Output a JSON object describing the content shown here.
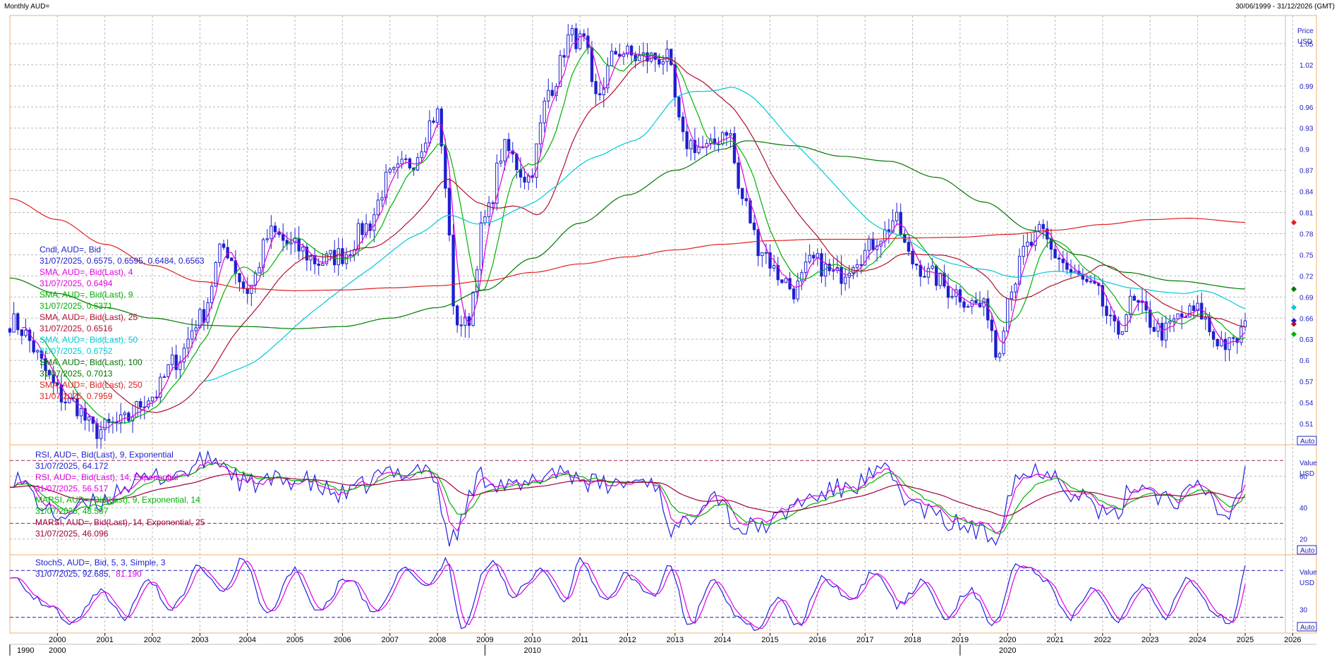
{
  "window": {
    "title": "Monthly AUD=",
    "date_range": "30/06/1999 - 31/12/2026 (GMT)"
  },
  "colors": {
    "candle": "#1f1fd0",
    "sma4": "#e000e0",
    "sma9": "#00b000",
    "sma25": "#b01030",
    "sma50": "#00c8d8",
    "sma100": "#007800",
    "sma250": "#e02020",
    "rsi9": "#2020e0",
    "rsi14": "#e000e0",
    "marsi9": "#00b000",
    "marsi14": "#a00040",
    "stoch_k": "#2020e0",
    "stoch_d": "#e000e0",
    "grid": "#b8b8b8",
    "panel_border": "#f0b070"
  },
  "price_panel": {
    "axis_title": "Price",
    "axis_unit": "USD",
    "auto_label": "Auto",
    "legend": [
      {
        "title": "Cndl, AUD=, Bid",
        "value": "31/07/2025, 0.6575, 0.6595, 0.6484, 0.6563",
        "color": "#2020d0"
      },
      {
        "title": "SMA, AUD=, Bid(Last), 4",
        "value": "31/07/2025, 0.6494",
        "color": "#e000e0"
      },
      {
        "title": "SMA, AUD=, Bid(Last), 9",
        "value": "31/07/2025, 0.6371",
        "color": "#00b000"
      },
      {
        "title": "SMA, AUD=, Bid(Last), 25",
        "value": "31/07/2025, 0.6516",
        "color": "#b01030"
      },
      {
        "title": "SMA, AUD=, Bid(Last), 50",
        "value": "31/07/2025, 0.6752",
        "color": "#00c8d8"
      },
      {
        "title": "SMA, AUD=, Bid(Last), 100",
        "value": "31/07/2025, 0.7013",
        "color": "#007800"
      },
      {
        "title": "SMA, AUD=, Bid(Last), 250",
        "value": "31/07/2025, 0.7959",
        "color": "#e02020"
      }
    ]
  },
  "rsi_panel": {
    "axis_title": "Value",
    "axis_unit": "USD",
    "auto_label": "Auto",
    "legend": [
      {
        "title": "RSI, AUD=, Bid(Last), 9, Exponential",
        "value": "31/07/2025, 64.172",
        "color": "#2020d0"
      },
      {
        "title": "RSI, AUD=, Bid(Last), 14, Exponential",
        "value": "31/07/2025, 56.517",
        "color": "#e000e0"
      },
      {
        "title": "MARSI, AUD=, Bid(Last), 9, Exponential, 14",
        "value": "31/07/2025, 48.507",
        "color": "#00b000"
      },
      {
        "title": "MARSI, AUD=, Bid(Last), 14, Exponential, 25",
        "value": "31/07/2025, 46.096",
        "color": "#a00040"
      }
    ]
  },
  "stoch_panel": {
    "axis_title": "Value",
    "axis_unit": "USD",
    "auto_label": "Auto",
    "legend_title": "StochS, AUD=, Bid,  5, 3, Simple, 3",
    "legend_date": "31/07/2025, 92.685,",
    "legend_k": "92.685",
    "legend_d": "81.190"
  },
  "x_axis": {
    "year_labels": [
      "2000",
      "2001",
      "2002",
      "2003",
      "2004",
      "2005",
      "2006",
      "2007",
      "2008",
      "2009",
      "2010",
      "2011",
      "2012",
      "2013",
      "2014",
      "2015",
      "2016",
      "2017",
      "2018",
      "2019",
      "2020",
      "2021",
      "2022",
      "2023",
      "2024",
      "2025",
      "2026"
    ],
    "decade_labels": [
      "1990",
      "2000",
      "2010",
      "2020"
    ]
  },
  "chart_data": [
    {
      "type": "candlestick",
      "title": "Monthly AUD=",
      "ylabel": "Price USD",
      "ylim": [
        0.48,
        1.09
      ],
      "y_ticks": [
        "1.05",
        "1.02",
        "0.99",
        "0.96",
        "0.93",
        "0.9",
        "0.87",
        "0.84",
        "0.81",
        "0.78",
        "0.75",
        "0.72",
        "0.69",
        "0.66",
        "0.63",
        "0.6",
        "0.57",
        "0.54",
        "0.51"
      ],
      "close_anchors": [
        [
          1999.5,
          0.655
        ],
        [
          2000.8,
          0.54
        ],
        [
          2001.3,
          0.5
        ],
        [
          2001.8,
          0.51
        ],
        [
          2002.5,
          0.55
        ],
        [
          2003.0,
          0.6
        ],
        [
          2003.5,
          0.66
        ],
        [
          2004.0,
          0.76
        ],
        [
          2004.5,
          0.7
        ],
        [
          2005.0,
          0.78
        ],
        [
          2005.5,
          0.76
        ],
        [
          2006.0,
          0.74
        ],
        [
          2006.5,
          0.75
        ],
        [
          2007.0,
          0.79
        ],
        [
          2007.5,
          0.86
        ],
        [
          2007.9,
          0.88
        ],
        [
          2008.5,
          0.95
        ],
        [
          2008.7,
          0.83
        ],
        [
          2008.85,
          0.66
        ],
        [
          2009.1,
          0.65
        ],
        [
          2009.5,
          0.8
        ],
        [
          2009.9,
          0.9
        ],
        [
          2010.4,
          0.86
        ],
        [
          2010.9,
          0.99
        ],
        [
          2011.3,
          1.06
        ],
        [
          2011.6,
          1.05
        ],
        [
          2011.8,
          0.97
        ],
        [
          2012.3,
          1.04
        ],
        [
          2012.7,
          1.03
        ],
        [
          2013.3,
          1.03
        ],
        [
          2013.7,
          0.91
        ],
        [
          2014.2,
          0.9
        ],
        [
          2014.6,
          0.93
        ],
        [
          2014.9,
          0.83
        ],
        [
          2015.3,
          0.76
        ],
        [
          2015.7,
          0.72
        ],
        [
          2016.0,
          0.7
        ],
        [
          2016.4,
          0.74
        ],
        [
          2016.9,
          0.72
        ],
        [
          2017.4,
          0.75
        ],
        [
          2017.9,
          0.78
        ],
        [
          2018.1,
          0.8
        ],
        [
          2018.5,
          0.74
        ],
        [
          2018.9,
          0.72
        ],
        [
          2019.3,
          0.7
        ],
        [
          2019.8,
          0.68
        ],
        [
          2020.1,
          0.67
        ],
        [
          2020.25,
          0.61
        ],
        [
          2020.6,
          0.71
        ],
        [
          2020.9,
          0.76
        ],
        [
          2021.2,
          0.78
        ],
        [
          2021.5,
          0.75
        ],
        [
          2021.9,
          0.72
        ],
        [
          2022.3,
          0.7
        ],
        [
          2022.8,
          0.64
        ],
        [
          2023.1,
          0.68
        ],
        [
          2023.8,
          0.64
        ],
        [
          2024.1,
          0.66
        ],
        [
          2024.5,
          0.67
        ],
        [
          2024.9,
          0.63
        ],
        [
          2025.2,
          0.62
        ],
        [
          2025.58,
          0.6563
        ]
      ],
      "series": [
        {
          "name": "SMA, AUD=, Bid(Last), 100",
          "anchors": [
            [
              1999.5,
              0.717
            ],
            [
              2000.5,
              0.695
            ],
            [
              2001.5,
              0.675
            ],
            [
              2002.5,
              0.66
            ],
            [
              2003.5,
              0.65
            ],
            [
              2004.5,
              0.648
            ],
            [
              2005.5,
              0.645
            ],
            [
              2006.5,
              0.648
            ],
            [
              2007.5,
              0.66
            ],
            [
              2008.5,
              0.675
            ],
            [
              2009.5,
              0.7
            ],
            [
              2010.5,
              0.745
            ],
            [
              2011.5,
              0.795
            ],
            [
              2012.5,
              0.835
            ],
            [
              2013.5,
              0.87
            ],
            [
              2014.5,
              0.9
            ],
            [
              2015.0,
              0.912
            ],
            [
              2016.0,
              0.905
            ],
            [
              2017.0,
              0.89
            ],
            [
              2018.0,
              0.883
            ],
            [
              2019.0,
              0.86
            ],
            [
              2020.0,
              0.825
            ],
            [
              2021.0,
              0.785
            ],
            [
              2022.0,
              0.75
            ],
            [
              2023.0,
              0.725
            ],
            [
              2024.0,
              0.713
            ],
            [
              2025.58,
              0.7013
            ]
          ]
        },
        {
          "name": "SMA, AUD=, Bid(Last), 250",
          "anchors": [
            [
              1999.5,
              0.83
            ],
            [
              2000.5,
              0.8
            ],
            [
              2001.5,
              0.765
            ],
            [
              2002.5,
              0.735
            ],
            [
              2003.5,
              0.712
            ],
            [
              2004.5,
              0.702
            ],
            [
              2005.5,
              0.699
            ],
            [
              2006.5,
              0.7
            ],
            [
              2007.5,
              0.703
            ],
            [
              2008.5,
              0.706
            ],
            [
              2009.5,
              0.713
            ],
            [
              2010.5,
              0.725
            ],
            [
              2011.5,
              0.737
            ],
            [
              2012.5,
              0.747
            ],
            [
              2013.5,
              0.757
            ],
            [
              2014.5,
              0.765
            ],
            [
              2015.5,
              0.77
            ],
            [
              2016.5,
              0.772
            ],
            [
              2017.5,
              0.772
            ],
            [
              2018.5,
              0.774
            ],
            [
              2019.5,
              0.775
            ],
            [
              2020.5,
              0.779
            ],
            [
              2021.5,
              0.785
            ],
            [
              2022.5,
              0.793
            ],
            [
              2023.5,
              0.8
            ],
            [
              2024.3,
              0.802
            ],
            [
              2025.58,
              0.7959
            ]
          ]
        }
      ]
    },
    {
      "type": "line",
      "title": "RSI",
      "ylabel": "Value USD",
      "ylim": [
        10,
        80
      ],
      "y_ticks": [
        "60",
        "40",
        "20"
      ],
      "bands": [
        70,
        30
      ],
      "anchors": [
        [
          1999.5,
          60
        ],
        [
          2000.5,
          35
        ],
        [
          2001.3,
          42
        ],
        [
          2002.0,
          55
        ],
        [
          2003.0,
          62
        ],
        [
          2003.8,
          71
        ],
        [
          2004.5,
          55
        ],
        [
          2005.5,
          58
        ],
        [
          2006.5,
          48
        ],
        [
          2007.5,
          62
        ],
        [
          2008.3,
          66
        ],
        [
          2008.8,
          20
        ],
        [
          2009.4,
          60
        ],
        [
          2010.2,
          52
        ],
        [
          2011.0,
          64
        ],
        [
          2012.0,
          54
        ],
        [
          2013.0,
          58
        ],
        [
          2013.5,
          25
        ],
        [
          2014.3,
          50
        ],
        [
          2014.9,
          26
        ],
        [
          2015.5,
          30
        ],
        [
          2016.2,
          45
        ],
        [
          2017.0,
          52
        ],
        [
          2017.9,
          62
        ],
        [
          2018.6,
          40
        ],
        [
          2019.3,
          30
        ],
        [
          2020.2,
          22
        ],
        [
          2020.7,
          60
        ],
        [
          2021.3,
          65
        ],
        [
          2022.0,
          48
        ],
        [
          2022.7,
          33
        ],
        [
          2023.2,
          55
        ],
        [
          2024.0,
          45
        ],
        [
          2024.6,
          52
        ],
        [
          2025.1,
          34
        ],
        [
          2025.58,
          64
        ]
      ]
    },
    {
      "type": "line",
      "title": "StochS",
      "ylabel": "Value USD",
      "ylim": [
        0,
        100
      ],
      "y_ticks": [
        "30"
      ],
      "bands": [
        80,
        20
      ],
      "anchors": [
        [
          1999.5,
          75
        ],
        [
          2000.2,
          40
        ],
        [
          2000.8,
          15
        ],
        [
          2001.4,
          55
        ],
        [
          2001.9,
          20
        ],
        [
          2002.4,
          70
        ],
        [
          2002.9,
          30
        ],
        [
          2003.5,
          85
        ],
        [
          2004.0,
          55
        ],
        [
          2004.4,
          95
        ],
        [
          2004.9,
          25
        ],
        [
          2005.5,
          80
        ],
        [
          2006.0,
          30
        ],
        [
          2006.6,
          70
        ],
        [
          2007.2,
          25
        ],
        [
          2007.8,
          85
        ],
        [
          2008.3,
          60
        ],
        [
          2008.7,
          95
        ],
        [
          2009.0,
          5
        ],
        [
          2009.6,
          90
        ],
        [
          2010.1,
          50
        ],
        [
          2010.7,
          80
        ],
        [
          2011.2,
          40
        ],
        [
          2011.5,
          95
        ],
        [
          2012.0,
          40
        ],
        [
          2012.5,
          75
        ],
        [
          2013.0,
          45
        ],
        [
          2013.4,
          85
        ],
        [
          2013.8,
          10
        ],
        [
          2014.3,
          70
        ],
        [
          2014.8,
          25
        ],
        [
          2015.2,
          5
        ],
        [
          2015.7,
          45
        ],
        [
          2016.1,
          10
        ],
        [
          2016.6,
          70
        ],
        [
          2017.2,
          45
        ],
        [
          2017.7,
          80
        ],
        [
          2018.2,
          35
        ],
        [
          2018.7,
          65
        ],
        [
          2019.2,
          20
        ],
        [
          2019.7,
          55
        ],
        [
          2020.2,
          10
        ],
        [
          2020.7,
          90
        ],
        [
          2021.3,
          70
        ],
        [
          2021.8,
          20
        ],
        [
          2022.3,
          60
        ],
        [
          2022.8,
          15
        ],
        [
          2023.3,
          60
        ],
        [
          2023.8,
          20
        ],
        [
          2024.3,
          70
        ],
        [
          2024.8,
          30
        ],
        [
          2025.2,
          10
        ],
        [
          2025.58,
          93
        ]
      ]
    }
  ]
}
